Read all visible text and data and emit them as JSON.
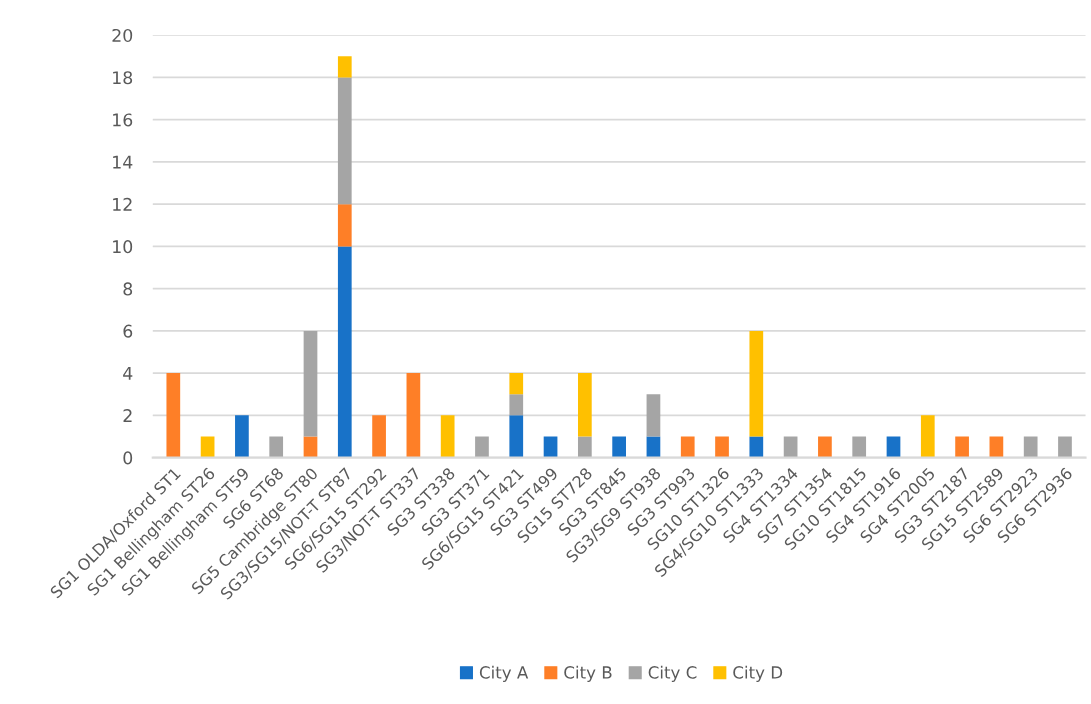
{
  "chart_data": {
    "type": "bar",
    "stacked": true,
    "categories": [
      "SG1 OLDA/Oxford ST1",
      "SG1 Bellingham ST26",
      "SG1 Bellingham ST59",
      "SG6 ST68",
      "SG5 Cambridge ST80",
      "SG3/SG15/NOT-T ST87",
      "SG6/SG15 ST292",
      "SG3/NOT-T ST337",
      "SG3 ST338",
      "SG3 ST371",
      "SG6/SG15 ST421",
      "SG3 ST499",
      "SG15 ST728",
      "SG3 ST845",
      "SG3/SG9 ST938",
      "SG3 ST993",
      "SG10 ST1326",
      "SG4/SG10 ST1333",
      "SG4 ST1334",
      "SG7 ST1354",
      "SG10 ST1815",
      "SG4 ST1916",
      "SG4 ST2005",
      "SG3 ST2187",
      "SG15 ST2589",
      "SG6 ST2923",
      "SG6 ST2936"
    ],
    "series": [
      {
        "name": "City A",
        "color": "#1872c8",
        "values": [
          0,
          0,
          2,
          0,
          0,
          10,
          0,
          0,
          0,
          0,
          2,
          1,
          0,
          1,
          1,
          0,
          0,
          1,
          0,
          0,
          0,
          1,
          0,
          0,
          0,
          0,
          0
        ]
      },
      {
        "name": "City B",
        "color": "#fe7f27",
        "values": [
          4,
          0,
          0,
          0,
          1,
          2,
          2,
          4,
          0,
          0,
          0,
          0,
          0,
          0,
          0,
          1,
          1,
          0,
          0,
          1,
          0,
          0,
          0,
          1,
          1,
          0,
          0
        ]
      },
      {
        "name": "City C",
        "color": "#a5a5a5",
        "values": [
          0,
          0,
          0,
          1,
          5,
          6,
          0,
          0,
          0,
          1,
          1,
          0,
          1,
          0,
          2,
          0,
          0,
          0,
          1,
          0,
          1,
          0,
          0,
          0,
          0,
          1,
          1
        ]
      },
      {
        "name": "City D",
        "color": "#ffc000",
        "values": [
          0,
          1,
          0,
          0,
          0,
          1,
          0,
          0,
          2,
          0,
          1,
          0,
          3,
          0,
          0,
          0,
          0,
          5,
          0,
          0,
          0,
          0,
          2,
          0,
          0,
          0,
          0
        ]
      }
    ],
    "ylim": [
      0,
      20
    ],
    "yticks": [
      0,
      2,
      4,
      6,
      8,
      10,
      12,
      14,
      16,
      18,
      20
    ],
    "grid": "y",
    "legend": "bottom"
  }
}
